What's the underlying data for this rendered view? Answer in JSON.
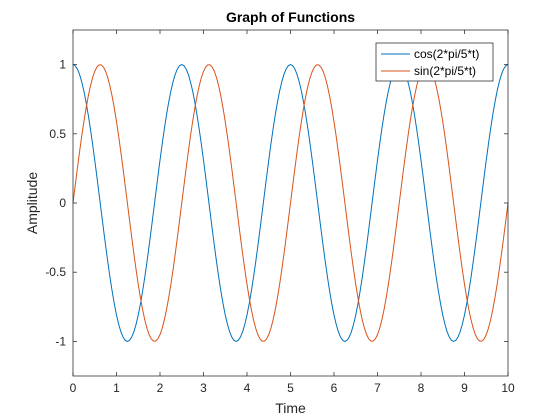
{
  "chart_data": {
    "type": "line",
    "title": "Graph of Functions",
    "xlabel": "Time",
    "ylabel": "Amplitude",
    "xlim": [
      0,
      10
    ],
    "ylim": [
      -1.25,
      1.25
    ],
    "xticks": [
      0,
      1,
      2,
      3,
      4,
      5,
      6,
      7,
      8,
      9,
      10
    ],
    "xtick_labels": [
      "0",
      "1",
      "2",
      "3",
      "4",
      "5",
      "6",
      "7",
      "8",
      "9",
      "10"
    ],
    "yticks": [
      -1,
      -0.5,
      0,
      0.5,
      1
    ],
    "ytick_labels": [
      "-1",
      "-0.5",
      "0",
      "0.5",
      "1"
    ],
    "grid": false,
    "legend_position": "top-right",
    "x_step": 0.05,
    "series": [
      {
        "name": "cos(2*pi/5*t)",
        "color": "#0072BD",
        "function": "cos",
        "frequency": 0.4
      },
      {
        "name": "sin(2*pi/5*t)",
        "color": "#D95319",
        "function": "sin",
        "frequency": 0.4
      }
    ]
  }
}
